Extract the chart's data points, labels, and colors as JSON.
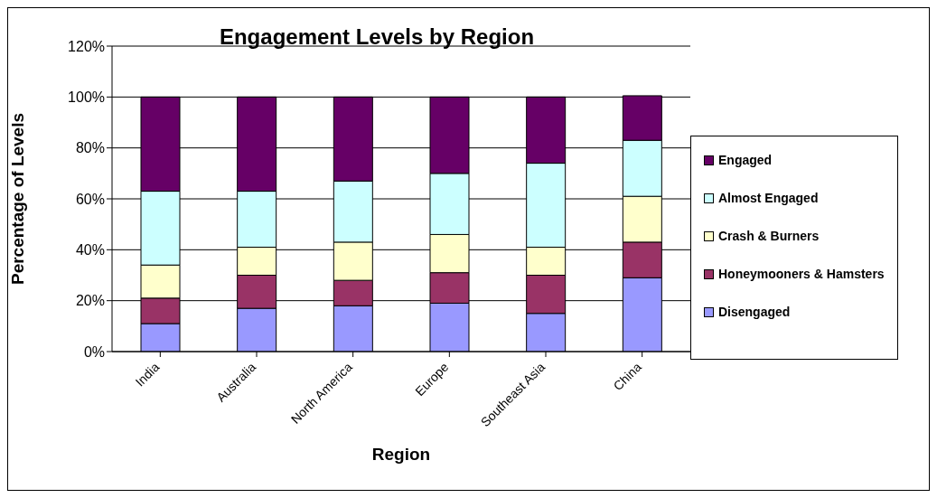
{
  "chart_data": {
    "type": "bar",
    "title": "Engagement Levels by Region",
    "xlabel": "Region",
    "ylabel": "Percentage of Levels",
    "categories": [
      "India",
      "Australia",
      "North America",
      "Europe",
      "Southeast Asia",
      "China"
    ],
    "stacked": true,
    "series": [
      {
        "name": "Disengaged",
        "color": "#9999ff",
        "values": [
          11,
          17,
          18,
          19,
          15,
          29
        ]
      },
      {
        "name": "Honeymooners & Hamsters",
        "color": "#993366",
        "values": [
          10,
          13,
          10,
          12,
          15,
          14
        ]
      },
      {
        "name": "Crash & Burners",
        "color": "#ffffcc",
        "values": [
          13,
          11,
          15,
          15,
          11,
          18
        ]
      },
      {
        "name": "Almost Engaged",
        "color": "#ccffff",
        "values": [
          29,
          22,
          24,
          24,
          33,
          22
        ]
      },
      {
        "name": "Engaged",
        "color": "#660066",
        "values": [
          37,
          37,
          33,
          30,
          26,
          17.5
        ]
      }
    ],
    "ylim": [
      0,
      120
    ],
    "yticks": [
      {
        "value": 0,
        "label": "0%"
      },
      {
        "value": 20,
        "label": "20%"
      },
      {
        "value": 40,
        "label": "40%"
      },
      {
        "value": 60,
        "label": "60%"
      },
      {
        "value": 80,
        "label": "80%"
      },
      {
        "value": 100,
        "label": "100%"
      },
      {
        "value": 120,
        "label": "120%"
      }
    ],
    "grid": "y",
    "legend": "right"
  }
}
